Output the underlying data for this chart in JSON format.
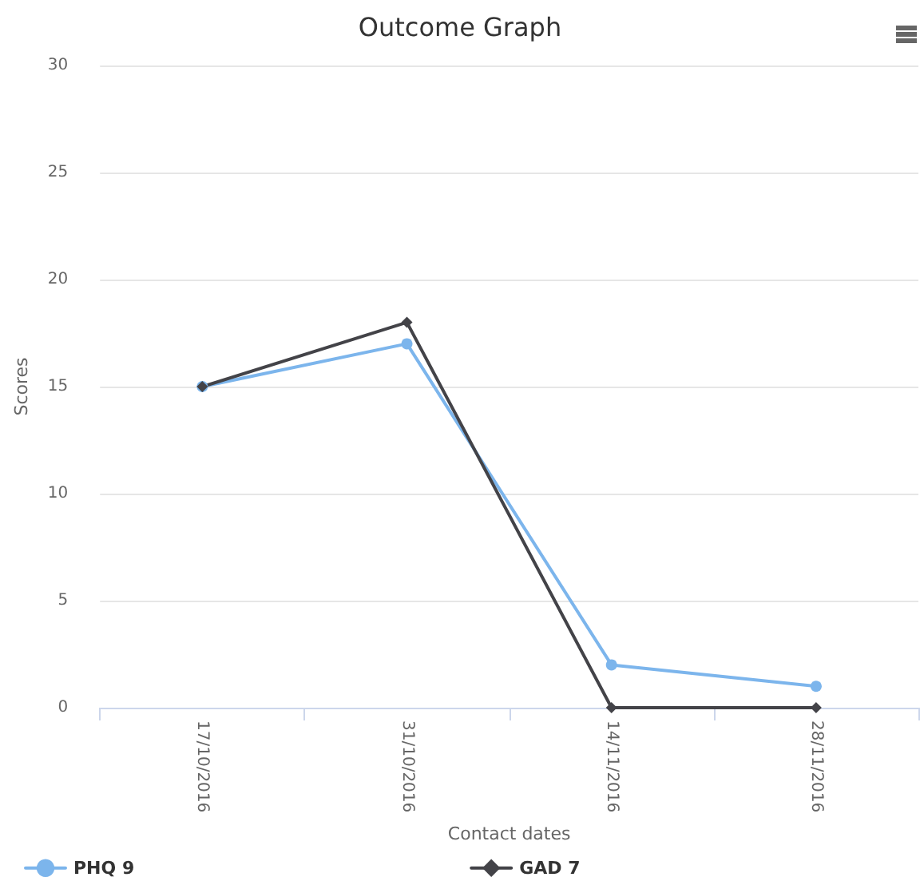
{
  "chart_data": {
    "type": "line",
    "title": "Outcome Graph",
    "xlabel": "Contact dates",
    "ylabel": "Scores",
    "categories": [
      "17/10/2016",
      "31/10/2016",
      "14/11/2016",
      "28/11/2016"
    ],
    "series": [
      {
        "name": "PHQ 9",
        "color": "#7cb5ec",
        "marker": "circle",
        "values": [
          15,
          17,
          2,
          1
        ]
      },
      {
        "name": "GAD 7",
        "color": "#434348",
        "marker": "diamond",
        "values": [
          15,
          18,
          0,
          0
        ]
      }
    ],
    "ylim": [
      0,
      30
    ],
    "yticks": [
      0,
      5,
      10,
      15,
      20,
      25,
      30
    ],
    "grid": "y",
    "legend": "bottom left"
  }
}
